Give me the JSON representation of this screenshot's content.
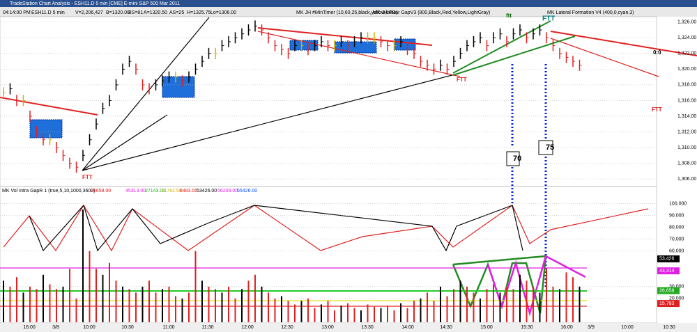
{
  "window_title": "TradeStation Chart Analysis - ESH11.D 5 min [CME] E-mini S&P 500 Mar 2011",
  "status_line": [
    "04:14:00 PM",
    "ESH11.D 5 min",
    "V=2,206,427",
    "B=1320.00",
    "BS=81",
    "A=1320.50",
    "AS=25",
    "H=1325.75",
    "Lo=1306.00",
    "MK JH #MinTimer (10,60,25,black,yellow,false)",
    "MK JH PBar GapV3 (800,Black,Red,Yellow,LightGray)",
    "MK Lateral Formation V4 (400,0,cyan,3)"
  ],
  "price_panel": {
    "ylim": [
      1305.3,
      1326.6
    ],
    "yticks": [
      {
        "value": 1326,
        "label": "1,326.00"
      },
      {
        "value": 1324,
        "label": "1,324.00"
      },
      {
        "value": 1322,
        "label": "1,322.00"
      },
      {
        "value": 1320,
        "label": "1,320.00"
      },
      {
        "value": 1318,
        "label": "1,318.00"
      },
      {
        "value": 1316,
        "label": "1,316.00"
      },
      {
        "value": 1314,
        "label": "1,314.00"
      },
      {
        "value": 1312,
        "label": "1,312.00"
      },
      {
        "value": 1310,
        "label": "1,310.00"
      },
      {
        "value": 1308,
        "label": "1,308.00"
      },
      {
        "value": 1306,
        "label": "1,306.00"
      }
    ],
    "closes": [
      1317,
      1317.5,
      1316,
      1316,
      1314,
      1312,
      1311,
      1311,
      1310,
      1309,
      1308,
      1307.5,
      1309,
      1311,
      1313,
      1315,
      1316,
      1318,
      1320,
      1321,
      1320,
      1318,
      1317.5,
      1318,
      1318.5,
      1319,
      1319,
      1318.5,
      1319,
      1320,
      1321,
      1322,
      1322,
      1323,
      1323.5,
      1324,
      1324.5,
      1325,
      1325.5,
      1325,
      1324,
      1323,
      1322.5,
      1322,
      1323,
      1323,
      1322.5,
      1323,
      1323.5,
      1323,
      1323,
      1323.5,
      1323,
      1323.5,
      1324,
      1324,
      1324,
      1323.5,
      1323,
      1323,
      1323.5,
      1322.5,
      1322,
      1321,
      1320.5,
      1320,
      1320.5,
      1320,
      1321,
      1322,
      1323,
      1323.5,
      1324,
      1323,
      1324,
      1324.5,
      1323.5,
      1324.5,
      1325,
      1324,
      1324.5,
      1325,
      1324,
      1323,
      1322,
      1321.5,
      1321,
      1320.5
    ],
    "annotations": [
      "FTT",
      "FTT",
      "FTT",
      "FTT",
      "ftt",
      "70",
      "75",
      "0:0"
    ]
  },
  "volume_panel": {
    "title": "MK Vol Intra GapR 1 (true,5,10,1000,3600)",
    "header_values": [
      "26658.00",
      "45313.00",
      "27143.00",
      "11782.50",
      "6483.00",
      "53426.00",
      "56209.00",
      "55426.00"
    ],
    "ylim": [
      0,
      112000
    ],
    "yticks": [
      {
        "value": 100000,
        "label": "100,000"
      },
      {
        "value": 90000,
        "label": "90,000"
      },
      {
        "value": 80000,
        "label": "80,000"
      },
      {
        "value": 70000,
        "label": "70,000"
      },
      {
        "value": 60000,
        "label": "60,000"
      },
      {
        "value": 30000,
        "label": "30,000"
      },
      {
        "value": 20000,
        "label": "20,000"
      }
    ],
    "volumes": [
      35000,
      30000,
      38000,
      25000,
      30000,
      28000,
      40000,
      32000,
      28000,
      30000,
      45000,
      20000,
      95000,
      60000,
      45000,
      40000,
      50000,
      35000,
      30000,
      28000,
      25000,
      30000,
      35000,
      25000,
      28000,
      30000,
      22000,
      20000,
      25000,
      60000,
      35000,
      30000,
      28000,
      25000,
      30000,
      20000,
      28000,
      35000,
      40000,
      30000,
      25000,
      20000,
      22000,
      18000,
      15000,
      18000,
      20000,
      12000,
      15000,
      18000,
      10000,
      14000,
      16000,
      12000,
      10000,
      15000,
      13000,
      12000,
      14000,
      10000,
      16000,
      12000,
      18000,
      20000,
      25000,
      18000,
      30000,
      22000,
      28000,
      35000,
      30000,
      25000,
      20000,
      28000,
      32000,
      25000,
      30000,
      28000,
      40000,
      35000,
      30000,
      25000,
      45000,
      30000,
      28000,
      42000,
      38000,
      30000
    ],
    "badges": [
      {
        "value": 53426,
        "label": "53,426",
        "color": "#000000"
      },
      {
        "value": 43314,
        "label": "43,314",
        "color": "#e020e0"
      },
      {
        "value": 26658,
        "label": "26,658",
        "color": "#22aa22"
      },
      {
        "value": 15783,
        "label": "15,783",
        "color": "#e02020"
      }
    ]
  },
  "time_axis": [
    "16:00",
    "3/8",
    "10:00",
    "10:30",
    "11:00",
    "11:30",
    "12:00",
    "12:30",
    "13:00",
    "13:30",
    "14:00",
    "14:30",
    "15:00",
    "15:30",
    "16:00",
    "3/9",
    "10:00",
    "10:30"
  ]
}
